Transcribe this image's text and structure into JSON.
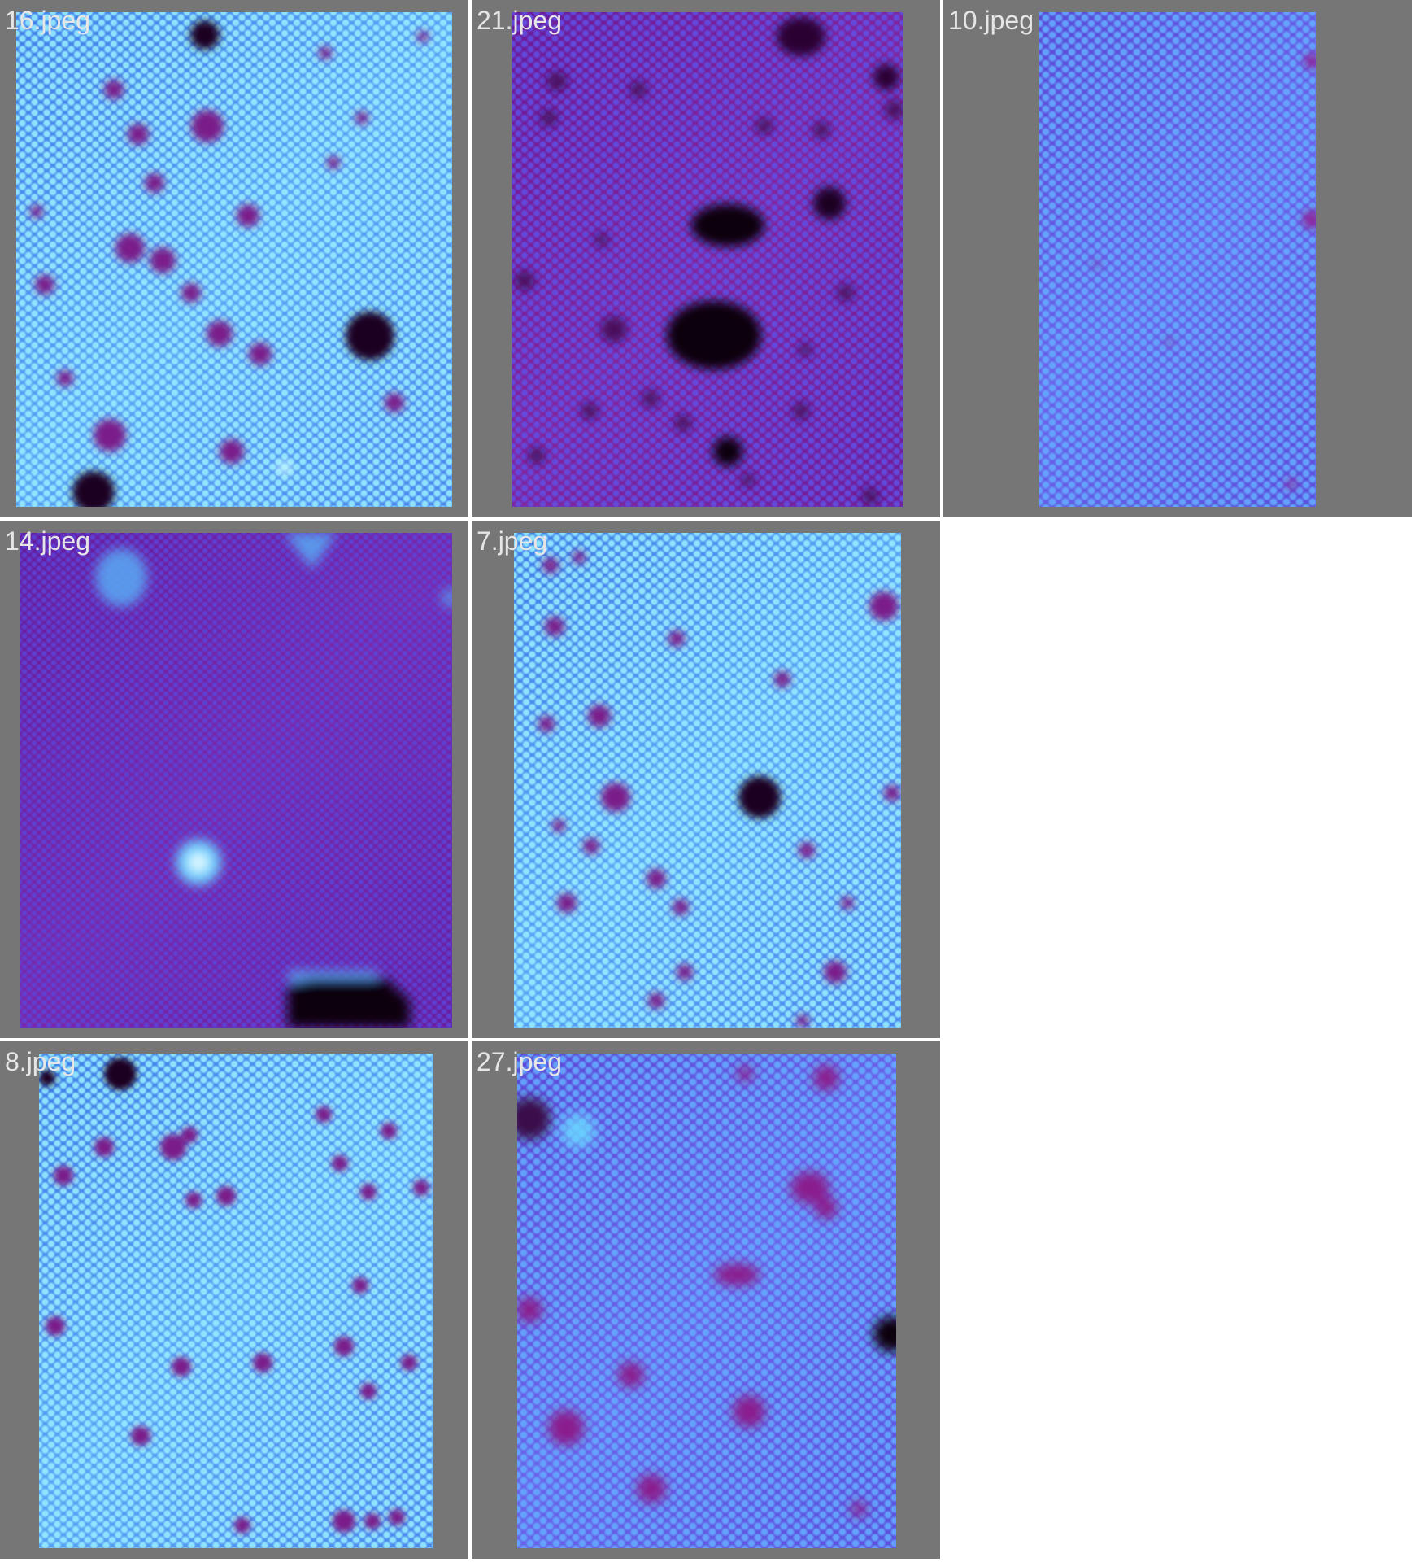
{
  "gallery": {
    "images": [
      {
        "label": "16.jpeg",
        "theme": "blue"
      },
      {
        "label": "21.jpeg",
        "theme": "purple"
      },
      {
        "label": "10.jpeg",
        "theme": "violet"
      },
      {
        "label": "14.jpeg",
        "theme": "deep"
      },
      {
        "label": "7.jpeg",
        "theme": "blue"
      },
      {
        "label": "8.jpeg",
        "theme": "blue"
      },
      {
        "label": "27.jpeg",
        "theme": "violet"
      }
    ]
  },
  "colors": {
    "cell_background": "#767676",
    "label_text": "#e6e6e6",
    "defect_dark": "#1a0020",
    "defect_purple": "#7a1a8a",
    "bright_spot": "#bff4ff"
  }
}
